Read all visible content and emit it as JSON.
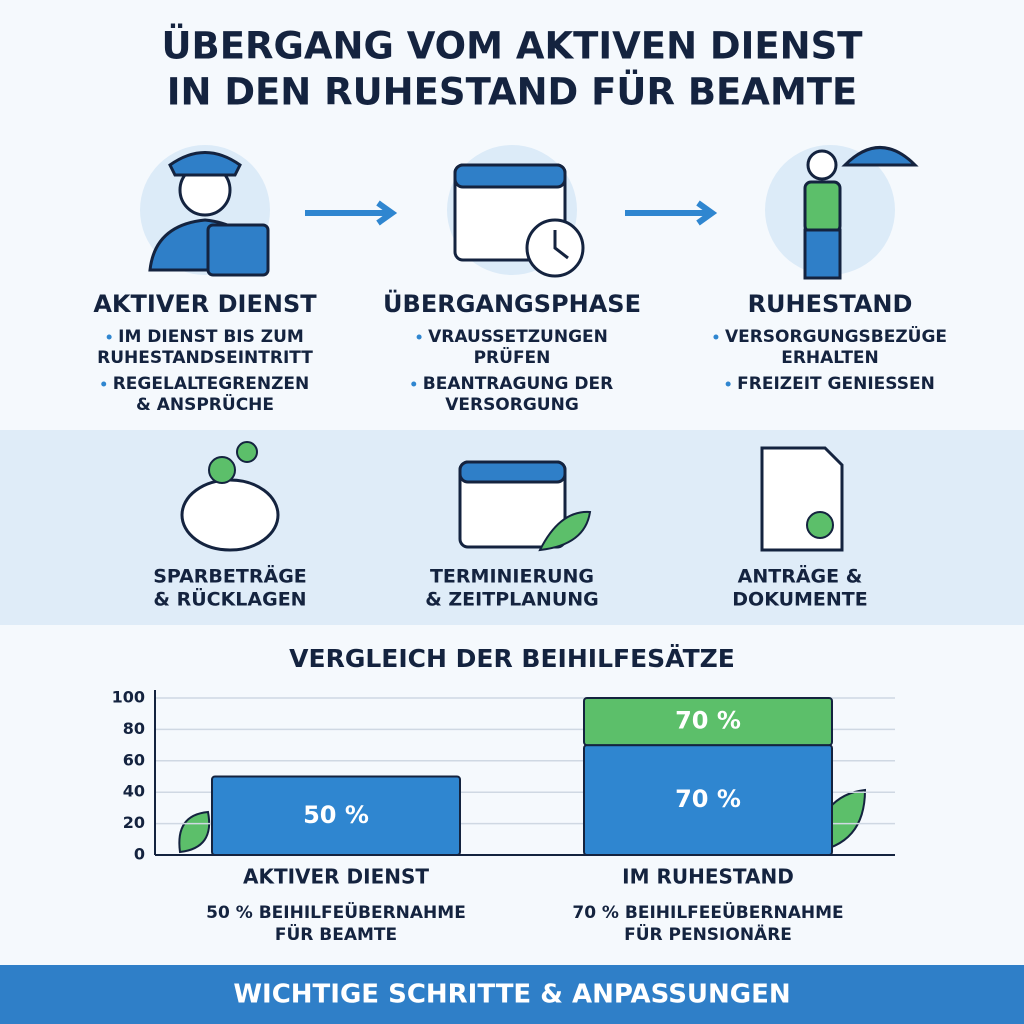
{
  "header": {
    "title_lines": [
      "ÜBERGANG VOM AKTIVEN DIENST",
      "IN DEN RUHESTAND FÜR BEAMTE"
    ]
  },
  "steps": [
    {
      "title": "AKTIVER DIENST",
      "bullets": [
        [
          "IM DIENST BIS ZUM",
          "RUHESTANDSEINTRITT"
        ],
        [
          "REGELALTEGRENZEN",
          "& ANSPRÜCHE"
        ]
      ]
    },
    {
      "title": "ÜBERGANGSPHASE",
      "bullets": [
        [
          "VRAUSSETZUNGEN",
          "PRÜFEN"
        ],
        [
          "BEANTRAGUNG DER",
          "VERSORGUNG"
        ]
      ]
    },
    {
      "title": "RUHESTAND",
      "bullets": [
        [
          "VERSORGUNGSBEZÜGE",
          "ERHALTEN"
        ],
        [
          "FREIZEIT GENIESSEN"
        ]
      ]
    }
  ],
  "topics": [
    [
      "SPARBETRÄGE",
      "& RÜCKLAGEN"
    ],
    [
      "TERMINIERUNG",
      "& ZEITPLANUNG"
    ],
    [
      "ANTRÄGE &",
      "DOKUMENTE"
    ]
  ],
  "chart_data": {
    "type": "stacked_bar",
    "title": "VERGLEICH DER BEIHILFESÄTZE",
    "categories": [
      "AKTIVER DIENST",
      "IM RUHESTAND"
    ],
    "captions": [
      [
        "50 % BEIHILFEÜBERNAHME",
        "FÜR BEAMTE"
      ],
      [
        "70 % BEIHILFEEÜBERNAHME",
        "FÜR PENSIONÄRE"
      ]
    ],
    "series": [
      {
        "color": "#2f86d0",
        "values": [
          50,
          70
        ],
        "value_labels": [
          "50 %",
          "70 %"
        ]
      },
      {
        "color": "#5cbf6a",
        "values": [
          null,
          30
        ]
      }
    ],
    "annotations": [
      {
        "text": "70 %"
      }
    ],
    "ylim": [
      0,
      100
    ],
    "yticks": [
      0,
      20,
      40,
      60,
      80,
      100
    ],
    "grid": true
  },
  "footer": {
    "text": "WICHTIGE SCHRITTE & ANPASSUNGEN"
  }
}
